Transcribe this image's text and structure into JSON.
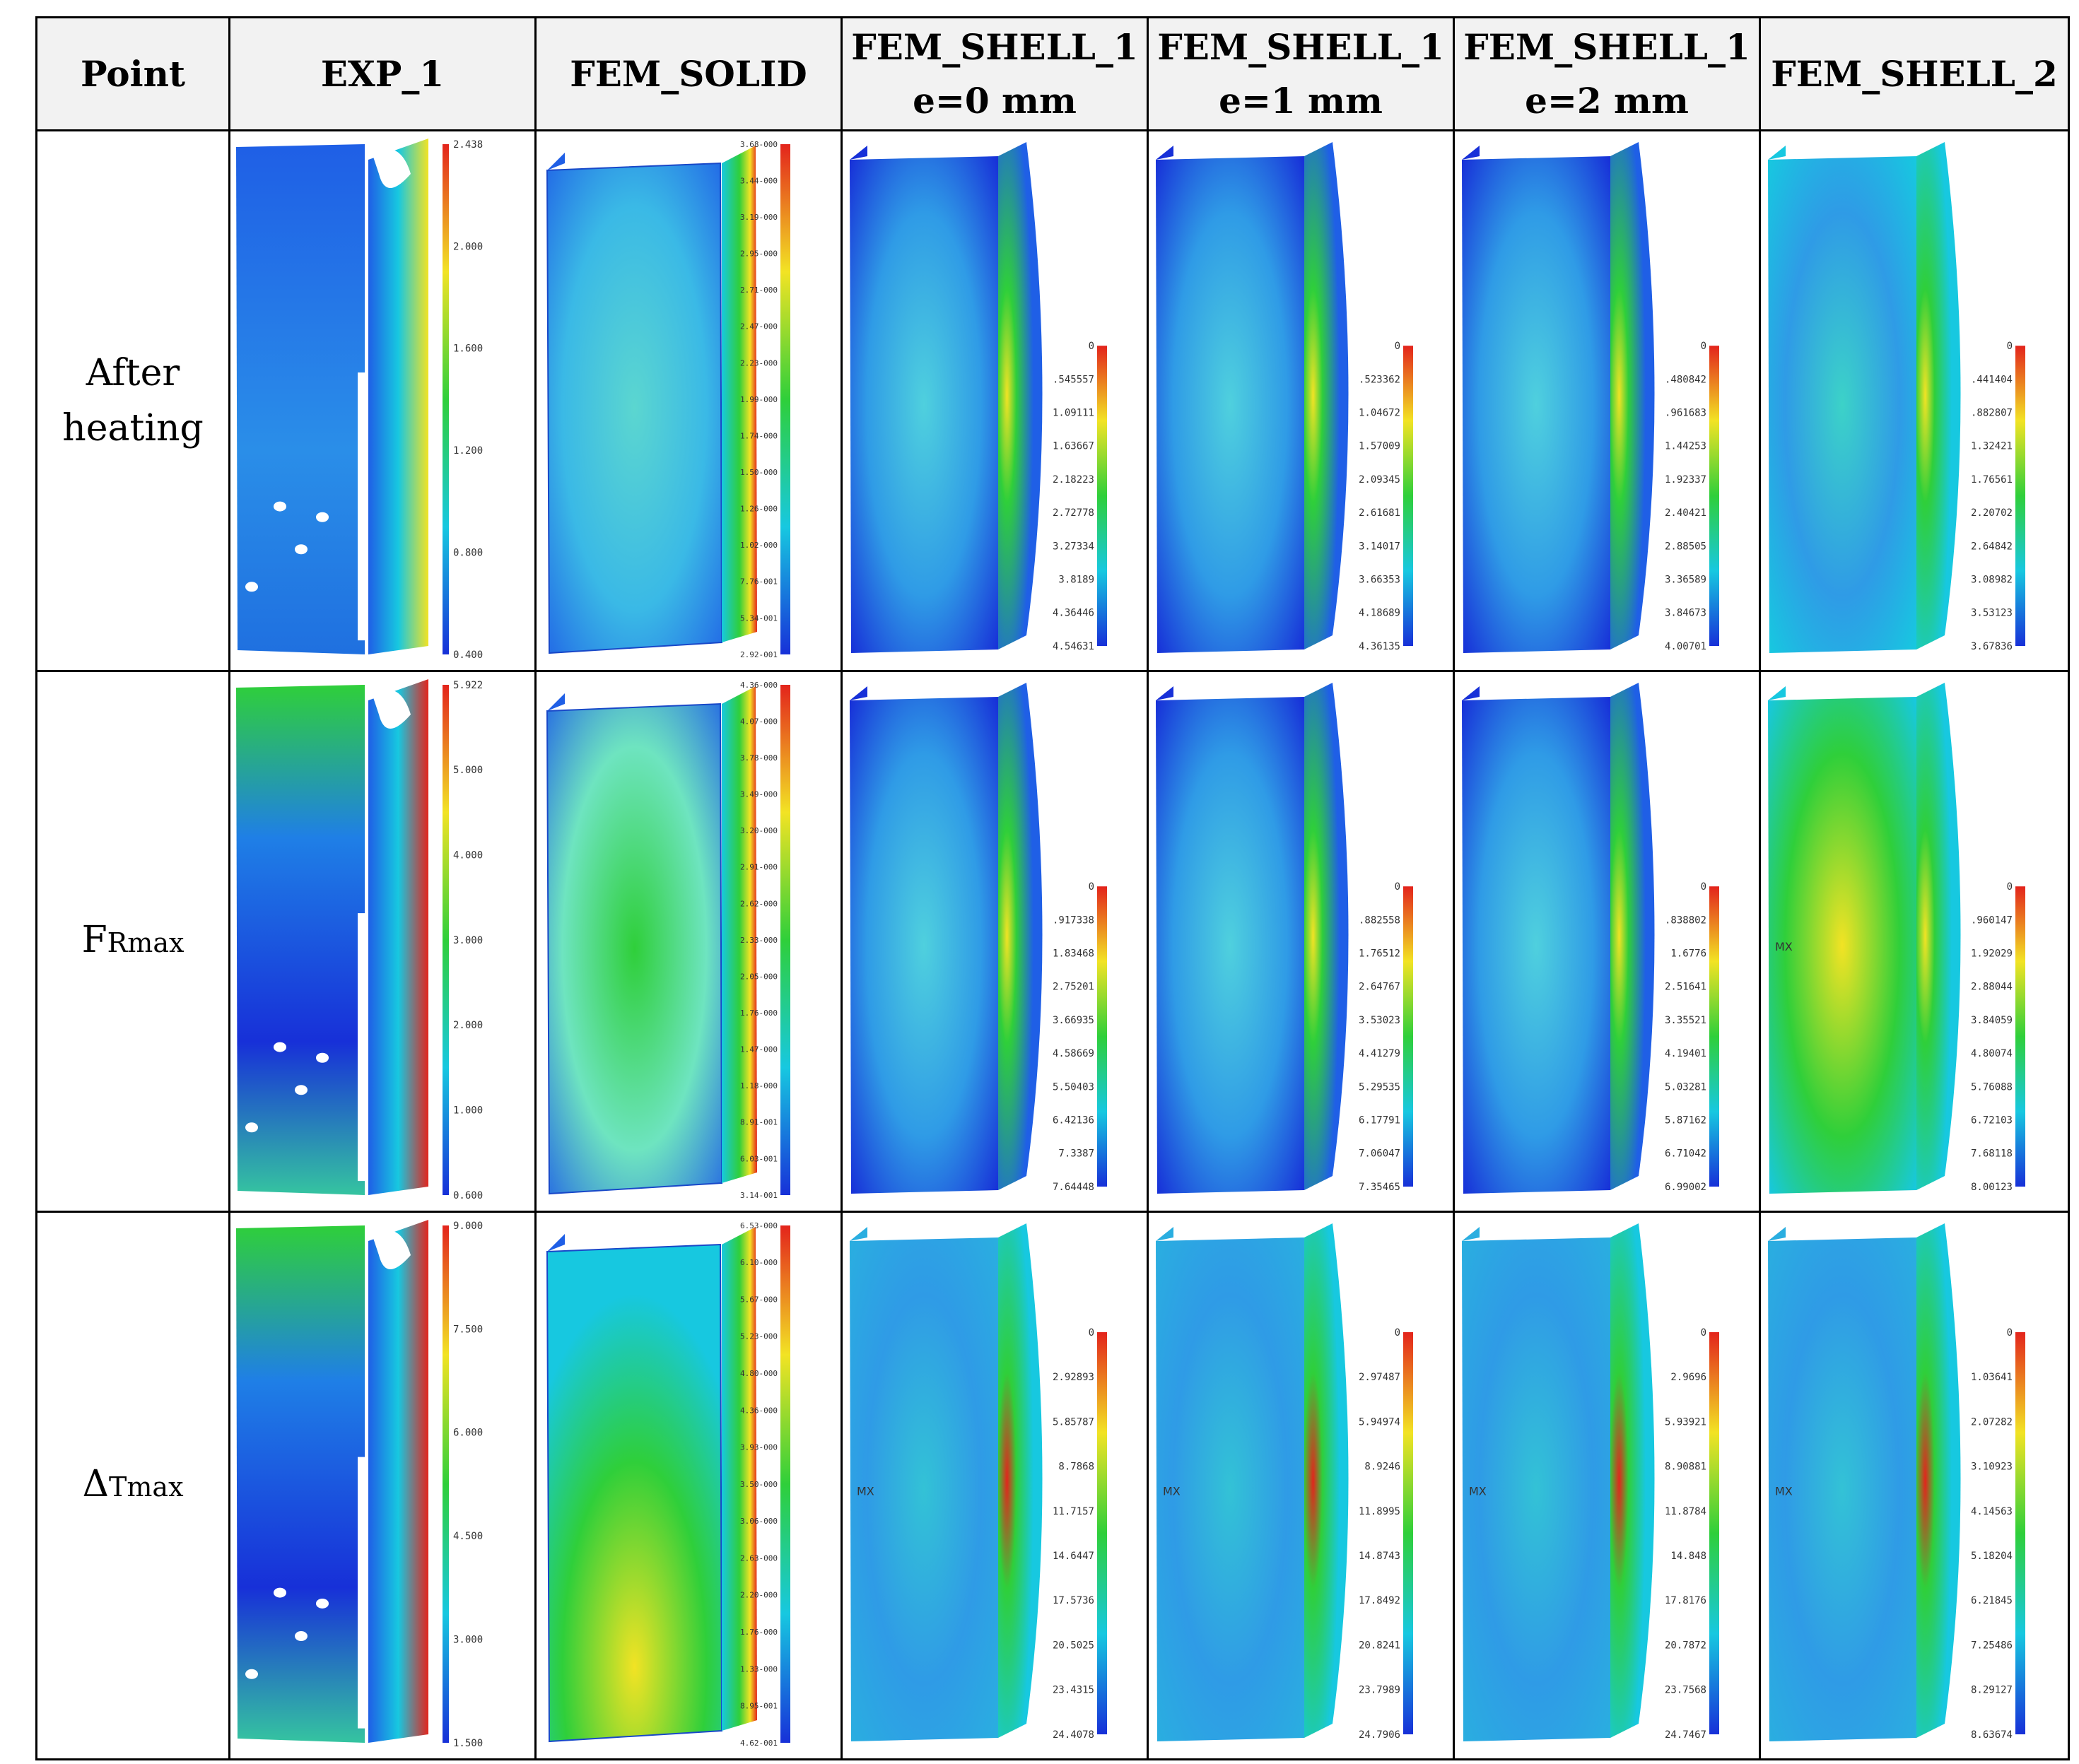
{
  "headers": [
    "Point",
    "EXP_1",
    "FEM_SOLID",
    "FEM_SHELL_1\ne=0 mm",
    "FEM_SHELL_1\ne=1 mm",
    "FEM_SHELL_1\ne=2 mm",
    "FEM_SHELL_2"
  ],
  "rows": [
    {
      "label": "After heating",
      "label_main": "After heating",
      "label_sub": "",
      "cells": [
        {
          "type": "exp",
          "ticks": [
            "2.438",
            "2.000",
            "1.600",
            "1.200",
            "0.800",
            "0.400"
          ]
        },
        {
          "type": "solid",
          "ticks": [
            "3.68-000",
            "3.44-000",
            "3.19-000",
            "2.95-000",
            "2.71-000",
            "2.47-000",
            "2.23-000",
            "1.99-000",
            "1.74-000",
            "1.50-000",
            "1.26-000",
            "1.02-000",
            "7.76-001",
            "5.34-001",
            "2.92-001"
          ]
        },
        {
          "type": "shell",
          "ticks": [
            "0",
            ".545557",
            "1.09111",
            "1.63667",
            "2.18223",
            "2.72778",
            "3.27334",
            "3.8189",
            "4.36446",
            "4.54631"
          ]
        },
        {
          "type": "shell",
          "ticks": [
            "0",
            ".523362",
            "1.04672",
            "1.57009",
            "2.09345",
            "2.61681",
            "3.14017",
            "3.66353",
            "4.18689",
            "4.36135"
          ]
        },
        {
          "type": "shell",
          "ticks": [
            "0",
            ".480842",
            ".961683",
            "1.44253",
            "1.92337",
            "2.40421",
            "2.88505",
            "3.36589",
            "3.84673",
            "4.00701"
          ]
        },
        {
          "type": "shell2",
          "ticks": [
            "0",
            ".441404",
            ".882807",
            "1.32421",
            "1.76561",
            "2.20702",
            "2.64842",
            "3.08982",
            "3.53123",
            "3.67836"
          ]
        }
      ]
    },
    {
      "label": "FRmax",
      "label_main": "F",
      "label_sub": "Rmax",
      "cells": [
        {
          "type": "exp",
          "ticks": [
            "5.922",
            "5.000",
            "4.000",
            "3.000",
            "2.000",
            "1.000",
            "0.600"
          ]
        },
        {
          "type": "solid",
          "ticks": [
            "4.36-000",
            "4.07-000",
            "3.78-000",
            "3.49-000",
            "3.20-000",
            "2.91-000",
            "2.62-000",
            "2.33-000",
            "2.05-000",
            "1.76-000",
            "1.47-000",
            "1.18-000",
            "8.91-001",
            "6.03-001",
            "3.14-001"
          ]
        },
        {
          "type": "shell",
          "ticks": [
            "0",
            ".917338",
            "1.83468",
            "2.75201",
            "3.66935",
            "4.58669",
            "5.50403",
            "6.42136",
            "7.3387",
            "7.64448"
          ]
        },
        {
          "type": "shell",
          "ticks": [
            "0",
            ".882558",
            "1.76512",
            "2.64767",
            "3.53023",
            "4.41279",
            "5.29535",
            "6.17791",
            "7.06047",
            "7.35465"
          ]
        },
        {
          "type": "shell",
          "ticks": [
            "0",
            ".838802",
            "1.6776",
            "2.51641",
            "3.35521",
            "4.19401",
            "5.03281",
            "5.87162",
            "6.71042",
            "6.99002"
          ]
        },
        {
          "type": "shell2",
          "ticks": [
            "0",
            ".960147",
            "1.92029",
            "2.88044",
            "3.84059",
            "4.80074",
            "5.76088",
            "6.72103",
            "7.68118",
            "8.00123"
          ]
        }
      ]
    },
    {
      "label": "ΔTmax",
      "label_main": "Δ",
      "label_sub": "Tmax",
      "cells": [
        {
          "type": "exp",
          "ticks": [
            "9.000",
            "7.500",
            "6.000",
            "4.500",
            "3.000",
            "1.500"
          ]
        },
        {
          "type": "solid",
          "ticks": [
            "6.53-000",
            "6.10-000",
            "5.67-000",
            "5.23-000",
            "4.80-000",
            "4.36-000",
            "3.93-000",
            "3.50-000",
            "3.06-000",
            "2.63-000",
            "2.20-000",
            "1.76-000",
            "1.33-000",
            "8.95-001",
            "4.62-001"
          ]
        },
        {
          "type": "shell",
          "ticks": [
            "0",
            "2.92893",
            "5.85787",
            "8.7868",
            "11.7157",
            "14.6447",
            "17.5736",
            "20.5025",
            "23.4315",
            "24.4078"
          ]
        },
        {
          "type": "shell",
          "ticks": [
            "0",
            "2.97487",
            "5.94974",
            "8.9246",
            "11.8995",
            "14.8743",
            "17.8492",
            "20.8241",
            "23.7989",
            "24.7906"
          ]
        },
        {
          "type": "shell",
          "ticks": [
            "0",
            "2.9696",
            "5.93921",
            "8.90881",
            "11.8784",
            "14.848",
            "17.8176",
            "20.7872",
            "23.7568",
            "24.7467"
          ]
        },
        {
          "type": "shell2",
          "ticks": [
            "0",
            "1.03641",
            "2.07282",
            "3.10923",
            "4.14563",
            "5.18204",
            "6.21845",
            "7.25486",
            "8.29127",
            "8.63674"
          ]
        }
      ]
    }
  ],
  "mx_label": "MX",
  "colors": {
    "border": "#000000",
    "header_bg": "#f2f2f2",
    "dark_blue": "#1730d8",
    "blue": "#1f5fe6",
    "cyan": "#17c8e0",
    "green": "#2fcf3a",
    "yellow": "#f2e324",
    "red": "#e3241c"
  }
}
